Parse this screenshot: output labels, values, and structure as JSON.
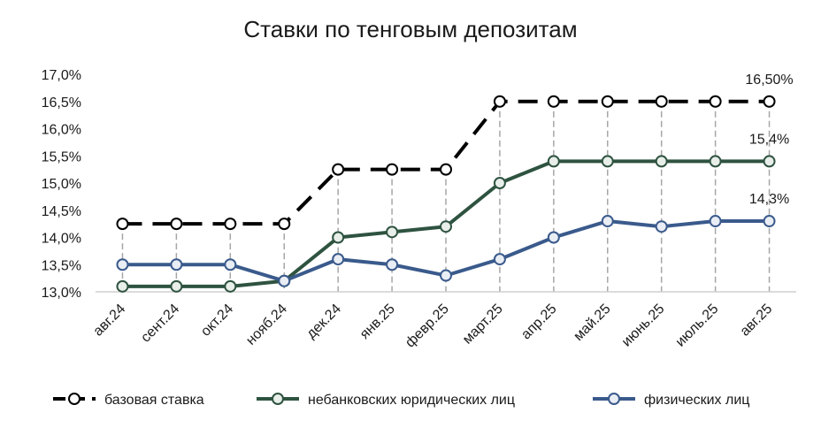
{
  "chart_data": {
    "type": "line",
    "title": "Ставки по тенговым депозитам",
    "xlabel": "",
    "ylabel": "",
    "categories": [
      "авг.24",
      "сент.24",
      "окт.24",
      "нояб.24",
      "дек.24",
      "янв.25",
      "февр.25",
      "март.25",
      "апр.25",
      "май.25",
      "июнь.25",
      "июль.25",
      "авг.25"
    ],
    "ylim": [
      13.0,
      17.0
    ],
    "yticks": [
      "13,0%",
      "13,5%",
      "14,0%",
      "14,5%",
      "15,0%",
      "15,5%",
      "16,0%",
      "16,5%",
      "17,0%"
    ],
    "yticks_values": [
      13.0,
      13.5,
      14.0,
      14.5,
      15.0,
      15.5,
      16.0,
      16.5,
      17.0
    ],
    "grid": "vertical dashed drop lines",
    "legend_position": "bottom",
    "series": [
      {
        "name": "базовая ставка",
        "color": "#000000",
        "style": "dashed",
        "values": [
          14.25,
          14.25,
          14.25,
          14.25,
          15.25,
          15.25,
          15.25,
          16.5,
          16.5,
          16.5,
          16.5,
          16.5,
          16.5
        ],
        "last_label": "16,50%"
      },
      {
        "name": "небанковских юридических лиц",
        "color": "#2e5340",
        "style": "solid",
        "values": [
          13.1,
          13.1,
          13.1,
          13.2,
          14.0,
          14.1,
          14.2,
          15.0,
          15.4,
          15.4,
          15.4,
          15.4,
          15.4
        ],
        "last_label": "15,4%"
      },
      {
        "name": "физических лиц",
        "color": "#3a5a8c",
        "style": "solid",
        "values": [
          13.5,
          13.5,
          13.5,
          13.2,
          13.6,
          13.5,
          13.3,
          13.6,
          14.0,
          14.3,
          14.2,
          14.3,
          14.3
        ],
        "last_label": "14,3%"
      }
    ]
  }
}
